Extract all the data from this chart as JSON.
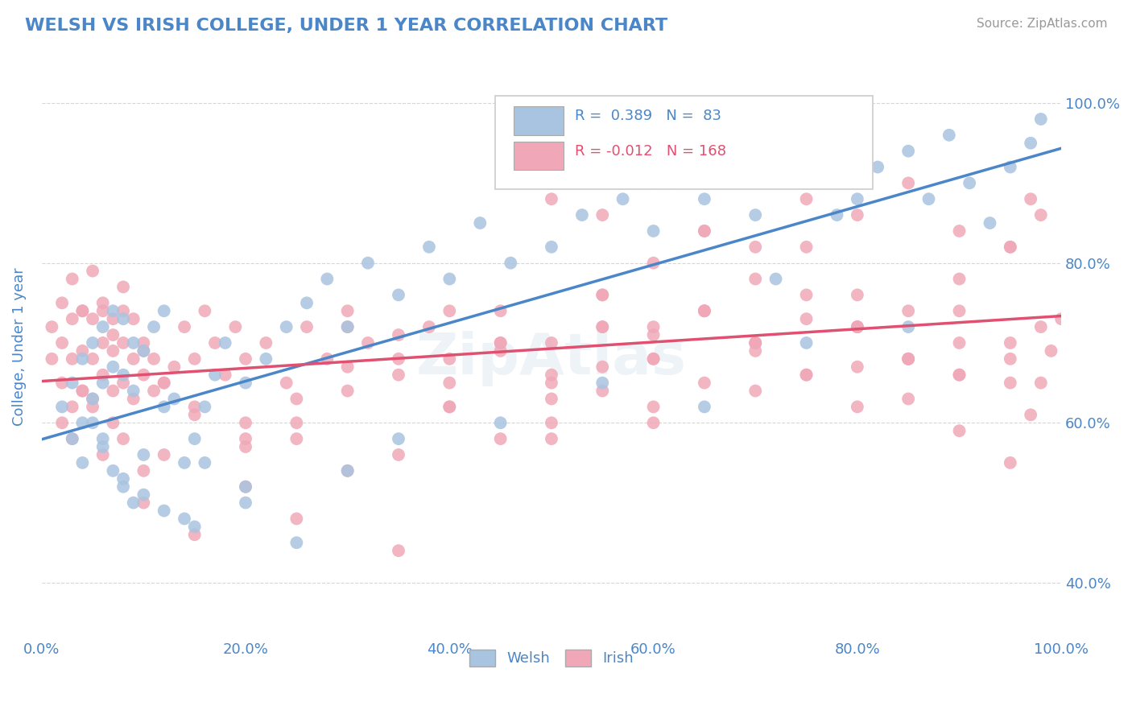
{
  "title": "WELSH VS IRISH COLLEGE, UNDER 1 YEAR CORRELATION CHART",
  "ylabel": "College, Under 1 year",
  "source_text": "Source: ZipAtlas.com",
  "title_color": "#4a86c8",
  "axis_label_color": "#4a86c8",
  "tick_color": "#4a86c8",
  "background_color": "#ffffff",
  "welsh_color": "#a8c4e0",
  "irish_color": "#f0a8b8",
  "welsh_line_color": "#4a86c8",
  "irish_line_color": "#e05070",
  "welsh_R": 0.389,
  "welsh_N": 83,
  "irish_R": -0.012,
  "irish_N": 168,
  "xtick_labels": [
    "0.0%",
    "20.0%",
    "40.0%",
    "60.0%",
    "80.0%",
    "100.0%"
  ],
  "xtick_positions": [
    0.0,
    0.2,
    0.4,
    0.6,
    0.8,
    1.0
  ],
  "ytick_labels": [
    "40.0%",
    "60.0%",
    "80.0%",
    "100.0%"
  ],
  "ytick_positions": [
    0.4,
    0.6,
    0.8,
    1.0
  ],
  "welsh_x": [
    0.02,
    0.03,
    0.03,
    0.04,
    0.04,
    0.05,
    0.05,
    0.06,
    0.06,
    0.07,
    0.07,
    0.08,
    0.08,
    0.09,
    0.09,
    0.1,
    0.11,
    0.12,
    0.13,
    0.14,
    0.15,
    0.16,
    0.17,
    0.18,
    0.2,
    0.22,
    0.24,
    0.26,
    0.28,
    0.3,
    0.32,
    0.35,
    0.38,
    0.4,
    0.43,
    0.46,
    0.5,
    0.53,
    0.57,
    0.6,
    0.62,
    0.65,
    0.68,
    0.7,
    0.72,
    0.74,
    0.76,
    0.78,
    0.8,
    0.82,
    0.85,
    0.87,
    0.89,
    0.91,
    0.93,
    0.95,
    0.97,
    0.98,
    0.05,
    0.06,
    0.07,
    0.08,
    0.09,
    0.1,
    0.12,
    0.14,
    0.16,
    0.2,
    0.25,
    0.35,
    0.45,
    0.55,
    0.65,
    0.75,
    0.85,
    0.04,
    0.06,
    0.08,
    0.1,
    0.12,
    0.15,
    0.2,
    0.3
  ],
  "welsh_y": [
    0.62,
    0.58,
    0.65,
    0.6,
    0.68,
    0.63,
    0.7,
    0.65,
    0.72,
    0.67,
    0.74,
    0.66,
    0.73,
    0.7,
    0.64,
    0.69,
    0.72,
    0.74,
    0.63,
    0.55,
    0.58,
    0.62,
    0.66,
    0.7,
    0.65,
    0.68,
    0.72,
    0.75,
    0.78,
    0.72,
    0.8,
    0.76,
    0.82,
    0.78,
    0.85,
    0.8,
    0.82,
    0.86,
    0.88,
    0.84,
    0.9,
    0.88,
    0.92,
    0.86,
    0.78,
    0.95,
    0.9,
    0.86,
    0.88,
    0.92,
    0.94,
    0.88,
    0.96,
    0.9,
    0.85,
    0.92,
    0.95,
    0.98,
    0.6,
    0.58,
    0.54,
    0.52,
    0.5,
    0.56,
    0.62,
    0.48,
    0.55,
    0.5,
    0.45,
    0.58,
    0.6,
    0.65,
    0.62,
    0.7,
    0.72,
    0.55,
    0.57,
    0.53,
    0.51,
    0.49,
    0.47,
    0.52,
    0.54
  ],
  "irish_x": [
    0.01,
    0.01,
    0.02,
    0.02,
    0.02,
    0.03,
    0.03,
    0.03,
    0.04,
    0.04,
    0.04,
    0.05,
    0.05,
    0.05,
    0.06,
    0.06,
    0.06,
    0.07,
    0.07,
    0.07,
    0.08,
    0.08,
    0.08,
    0.09,
    0.09,
    0.1,
    0.1,
    0.11,
    0.11,
    0.12,
    0.13,
    0.14,
    0.15,
    0.16,
    0.17,
    0.18,
    0.19,
    0.2,
    0.22,
    0.24,
    0.26,
    0.28,
    0.3,
    0.32,
    0.35,
    0.38,
    0.4,
    0.45,
    0.5,
    0.55,
    0.6,
    0.65,
    0.7,
    0.75,
    0.8,
    0.85,
    0.9,
    0.95,
    0.98,
    0.02,
    0.03,
    0.04,
    0.05,
    0.06,
    0.07,
    0.08,
    0.1,
    0.12,
    0.15,
    0.2,
    0.25,
    0.3,
    0.4,
    0.5,
    0.6,
    0.7,
    0.8,
    0.9,
    0.95,
    0.55,
    0.6,
    0.65,
    0.7,
    0.75,
    0.8,
    0.85,
    0.9,
    0.95,
    0.5,
    0.55,
    0.6,
    0.65,
    0.7,
    0.75,
    0.8,
    0.85,
    0.9,
    0.95,
    0.97,
    0.98,
    0.45,
    0.5,
    0.55,
    0.6,
    0.65,
    0.7,
    0.75,
    0.8,
    0.85,
    0.9,
    0.3,
    0.35,
    0.4,
    0.45,
    0.5,
    0.55,
    0.6,
    0.65,
    0.7,
    0.75,
    0.8,
    0.85,
    0.9,
    0.95,
    0.2,
    0.25,
    0.3,
    0.35,
    0.4,
    0.45,
    0.5,
    0.55,
    0.6,
    0.1,
    0.15,
    0.2,
    0.25,
    0.35,
    0.03,
    0.04,
    0.05,
    0.06,
    0.07,
    0.08,
    0.09,
    0.1,
    0.12,
    0.15,
    0.2,
    0.25,
    0.3,
    0.35,
    0.4,
    0.45,
    0.5,
    0.55,
    0.6,
    0.65,
    0.7,
    0.75,
    0.8,
    0.85,
    0.9,
    0.95,
    0.97,
    0.98,
    0.99,
    1.0
  ],
  "irish_y": [
    0.68,
    0.72,
    0.65,
    0.7,
    0.75,
    0.62,
    0.68,
    0.73,
    0.64,
    0.69,
    0.74,
    0.63,
    0.68,
    0.73,
    0.66,
    0.7,
    0.74,
    0.64,
    0.69,
    0.73,
    0.65,
    0.7,
    0.74,
    0.63,
    0.68,
    0.66,
    0.7,
    0.64,
    0.68,
    0.65,
    0.67,
    0.72,
    0.68,
    0.74,
    0.7,
    0.66,
    0.72,
    0.68,
    0.7,
    0.65,
    0.72,
    0.68,
    0.74,
    0.7,
    0.66,
    0.72,
    0.68,
    0.7,
    0.65,
    0.72,
    0.68,
    0.74,
    0.7,
    0.66,
    0.72,
    0.68,
    0.7,
    0.65,
    0.72,
    0.6,
    0.58,
    0.64,
    0.62,
    0.56,
    0.6,
    0.58,
    0.54,
    0.56,
    0.62,
    0.58,
    0.6,
    0.64,
    0.62,
    0.58,
    0.6,
    0.64,
    0.62,
    0.66,
    0.68,
    0.76,
    0.8,
    0.84,
    0.78,
    0.82,
    0.76,
    0.74,
    0.78,
    0.82,
    0.88,
    0.86,
    0.9,
    0.84,
    0.82,
    0.88,
    0.86,
    0.9,
    0.84,
    0.82,
    0.88,
    0.86,
    0.74,
    0.7,
    0.76,
    0.72,
    0.74,
    0.7,
    0.76,
    0.72,
    0.68,
    0.66,
    0.72,
    0.68,
    0.74,
    0.7,
    0.66,
    0.72,
    0.68,
    0.74,
    0.7,
    0.66,
    0.72,
    0.68,
    0.74,
    0.7,
    0.6,
    0.58,
    0.54,
    0.56,
    0.62,
    0.58,
    0.6,
    0.64,
    0.62,
    0.5,
    0.46,
    0.52,
    0.48,
    0.44,
    0.78,
    0.74,
    0.79,
    0.75,
    0.71,
    0.77,
    0.73,
    0.69,
    0.65,
    0.61,
    0.57,
    0.63,
    0.67,
    0.71,
    0.65,
    0.69,
    0.63,
    0.67,
    0.71,
    0.65,
    0.69,
    0.73,
    0.67,
    0.63,
    0.59,
    0.55,
    0.61,
    0.65,
    0.69,
    0.73
  ]
}
